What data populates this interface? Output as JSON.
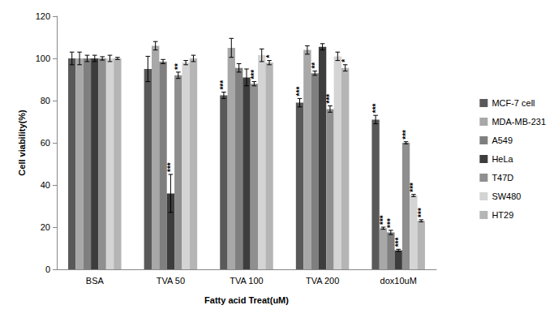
{
  "chart_data": {
    "type": "bar",
    "x_label": "Fatty acid Treat(uM)",
    "y_label": "Cell viability(%)",
    "categories": [
      "BSA",
      "TVA 50",
      "TVA 100",
      "TVA 200",
      "dox10uM"
    ],
    "ylim": [
      0,
      120
    ],
    "yticks": [
      0,
      20,
      40,
      60,
      80,
      100,
      120
    ],
    "grid": false,
    "legend": "right",
    "series": [
      {
        "name": "MCF-7 cell",
        "color": "#595959",
        "values": [
          100,
          95,
          82.5,
          79,
          71
        ],
        "errors": [
          3,
          6,
          1.5,
          2,
          2
        ],
        "significance": [
          null,
          null,
          "***",
          "***",
          "***"
        ]
      },
      {
        "name": "MDA-MB-231",
        "color": "#a8a8a8",
        "values": [
          100,
          106,
          105,
          104,
          19.5
        ],
        "errors": [
          3,
          2,
          4.5,
          2,
          0.5
        ],
        "significance": [
          null,
          null,
          null,
          null,
          "***"
        ]
      },
      {
        "name": "A549",
        "color": "#7f7f7f",
        "values": [
          100,
          98.5,
          95.5,
          93,
          17.5
        ],
        "errors": [
          1.5,
          1,
          2,
          1,
          1
        ],
        "significance": [
          null,
          null,
          null,
          "**",
          "***"
        ]
      },
      {
        "name": "HeLa",
        "color": "#3d3d3d",
        "values": [
          100,
          36,
          91,
          105.5,
          9
        ],
        "errors": [
          1.5,
          9,
          4,
          1.5,
          0.5
        ],
        "significance": [
          null,
          "***",
          null,
          null,
          "***"
        ]
      },
      {
        "name": "T47D",
        "color": "#8f8f8f",
        "values": [
          100,
          92,
          88,
          76,
          60
        ],
        "errors": [
          0.8,
          1.5,
          1,
          1.5,
          0.5
        ],
        "significance": [
          null,
          "**",
          "***",
          "***",
          "***"
        ]
      },
      {
        "name": "SW480",
        "color": "#d4d4d4",
        "values": [
          100,
          98,
          101.5,
          101,
          35
        ],
        "errors": [
          1.5,
          1,
          3,
          2,
          0.5
        ],
        "significance": [
          null,
          null,
          null,
          null,
          "***"
        ]
      },
      {
        "name": "HT29",
        "color": "#b5b5b5",
        "values": [
          100,
          100,
          98,
          95.5,
          23
        ],
        "errors": [
          0.5,
          1.5,
          1,
          1.5,
          0.5
        ],
        "significance": [
          null,
          null,
          "*",
          "*",
          "***"
        ]
      }
    ]
  }
}
